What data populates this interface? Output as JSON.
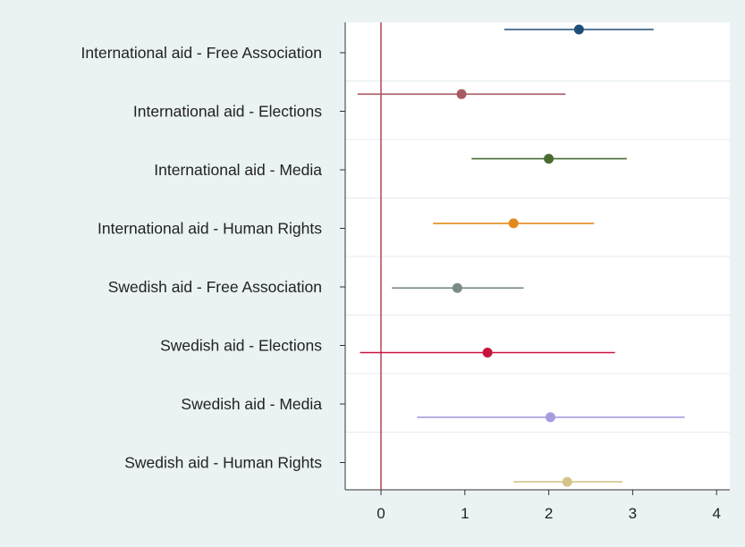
{
  "chart_data": {
    "type": "scatter",
    "subtype": "coefficient-plot-with-confidence-intervals",
    "title": "",
    "xlabel": "",
    "ylabel": "",
    "xlim": [
      -0.45,
      4.15
    ],
    "xticks": [
      0,
      1,
      2,
      3,
      4
    ],
    "reference_line_x": 0,
    "grid": "horizontal",
    "background": "#eaf2f3",
    "plot_background": "#ffffff",
    "reference_line_color": "#a8283f",
    "series": [
      {
        "label": "International aid - Free Association",
        "estimate": 2.36,
        "ci_low": 1.47,
        "ci_high": 3.25,
        "color": "#1f4e79"
      },
      {
        "label": "International aid - Elections",
        "estimate": 0.96,
        "ci_low": -0.28,
        "ci_high": 2.2,
        "color": "#a55a62"
      },
      {
        "label": "International aid - Media",
        "estimate": 2.0,
        "ci_low": 1.08,
        "ci_high": 2.93,
        "color": "#4a6b30"
      },
      {
        "label": "International aid - Human Rights",
        "estimate": 1.58,
        "ci_low": 0.62,
        "ci_high": 2.54,
        "color": "#e48a1c"
      },
      {
        "label": "Swedish aid - Free Association",
        "estimate": 0.91,
        "ci_low": 0.13,
        "ci_high": 1.7,
        "color": "#7a8c84"
      },
      {
        "label": "Swedish aid - Elections",
        "estimate": 1.27,
        "ci_low": -0.25,
        "ci_high": 2.79,
        "color": "#c8133f"
      },
      {
        "label": "Swedish aid - Media",
        "estimate": 2.02,
        "ci_low": 0.43,
        "ci_high": 3.62,
        "color": "#a99cde"
      },
      {
        "label": "Swedish aid - Human Rights",
        "estimate": 2.22,
        "ci_low": 1.58,
        "ci_high": 2.88,
        "color": "#d4c48a"
      }
    ]
  }
}
